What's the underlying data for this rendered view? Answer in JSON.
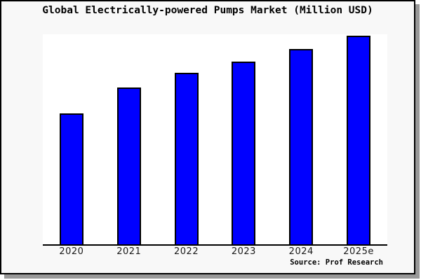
{
  "panel": {
    "background": "#f8f8f8",
    "border_color": "#000000",
    "shadow_color": "#999999"
  },
  "chart_data": {
    "type": "bar",
    "title": "Global Electrically-powered Pumps Market (Million USD)",
    "categories": [
      "2020",
      "2021",
      "2022",
      "2023",
      "2024",
      "2025e"
    ],
    "values": [
      62.5,
      75,
      82,
      87.5,
      93.5,
      100
    ],
    "value_note": "No y-axis ticks or value labels are shown in the image; values are relative estimates from bar heights with 2025e normalized to 100",
    "xlabel": "",
    "ylabel": "",
    "ylim": [
      0,
      100.5
    ],
    "grid": false,
    "legend": null,
    "bar_color": "#0000ff",
    "bar_edge_color": "#000000",
    "plot_background": "#ffffff",
    "source": "Source: Prof Research"
  }
}
